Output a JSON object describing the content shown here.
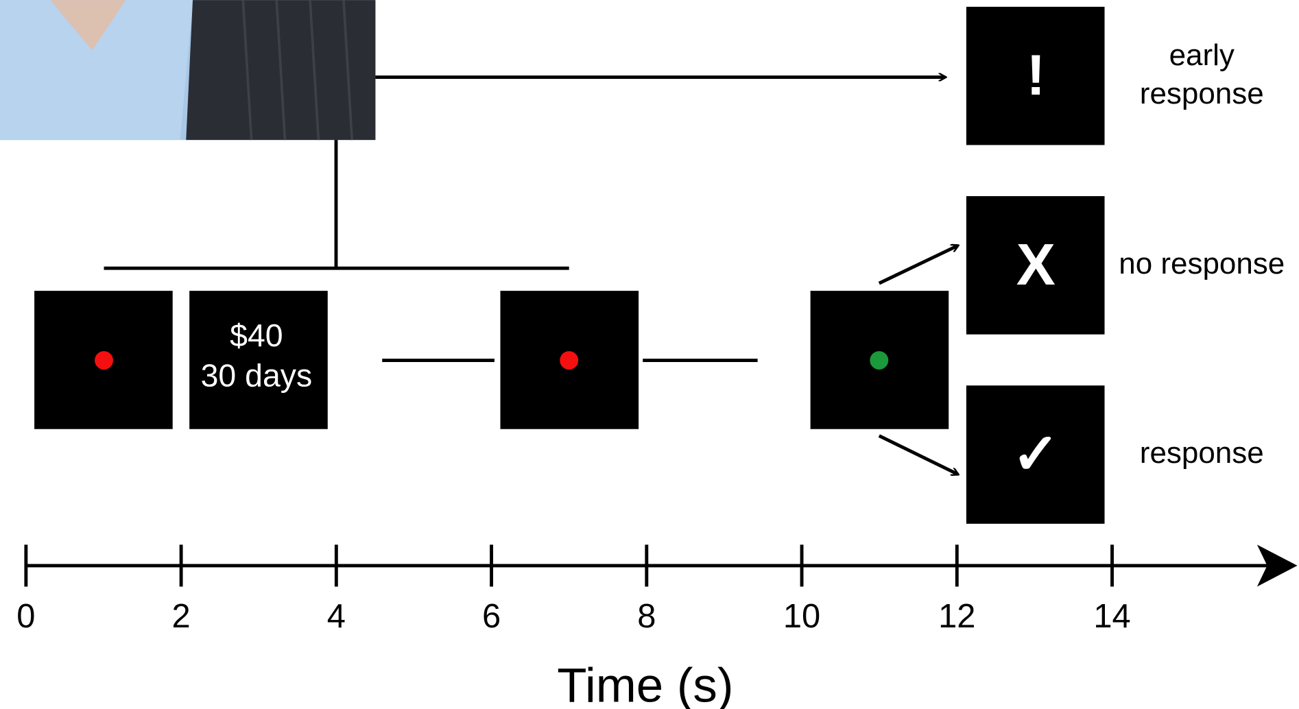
{
  "screens": [
    {
      "lines": [
        "$40",
        "30 days"
      ]
    }
  ],
  "outcomes": [
    {
      "symbol": "!",
      "label": [
        "early",
        "response"
      ]
    },
    {
      "symbol": "X",
      "label": [
        "no response"
      ]
    },
    {
      "symbol": "✓",
      "label": [
        "response"
      ]
    }
  ],
  "timeline": {
    "ticks": [
      0,
      2,
      4,
      6,
      8,
      10,
      12,
      14
    ],
    "label": "Time (s)"
  }
}
